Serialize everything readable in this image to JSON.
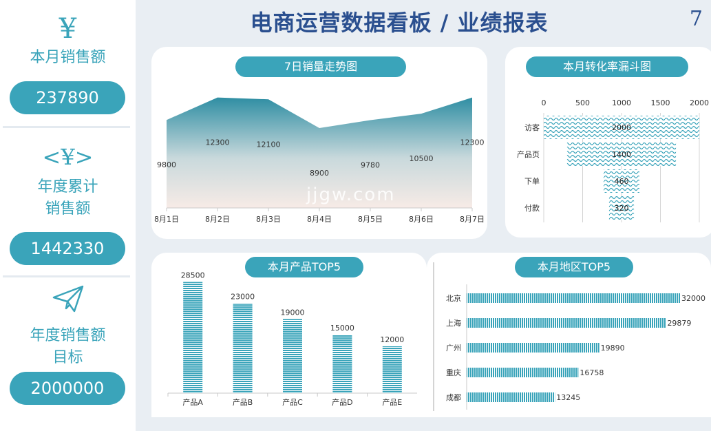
{
  "header": {
    "title": "电商运营数据看板 / 业绩报表",
    "page_number": "7"
  },
  "sidebar": {
    "kpis": [
      {
        "icon_text": "¥",
        "icon": "yen-icon",
        "label": "本月销售额",
        "value": "237890"
      },
      {
        "icon_text": "<¥>",
        "icon": "yen-code-icon",
        "label": "年度累计\n销售额",
        "value": "1442330"
      },
      {
        "icon_text": "",
        "icon": "paper-plane-icon",
        "label": "年度销售额\n目标",
        "value": "2000000"
      }
    ]
  },
  "watermark": "jjgw.com",
  "colors": {
    "accent": "#3aa4ba",
    "title": "#2a4f8f",
    "area_top": "#2f8ea3",
    "area_bottom": "#f7ebe6"
  },
  "chart_data": [
    {
      "type": "area",
      "title": "7日销量走势图",
      "categories": [
        "8月1日",
        "8月2日",
        "8月3日",
        "8月4日",
        "8月5日",
        "8月6日",
        "8月7日"
      ],
      "values": [
        9800,
        12300,
        12100,
        8900,
        9780,
        10500,
        12300
      ],
      "ylim": [
        0,
        13500
      ]
    },
    {
      "type": "bar",
      "orientation": "horizontal-funnel",
      "title": "本月转化率漏斗图",
      "categories": [
        "访客",
        "产品页",
        "下单",
        "付款"
      ],
      "values": [
        2000,
        1400,
        460,
        320
      ],
      "xticks": [
        "0",
        "500",
        "1000",
        "1500",
        "2000"
      ],
      "xlim": [
        0,
        2000
      ]
    },
    {
      "type": "bar",
      "title": "本月产品TOP5",
      "categories": [
        "产品A",
        "产品B",
        "产品C",
        "产品D",
        "产品E"
      ],
      "values": [
        28500,
        23000,
        19000,
        15000,
        12000
      ],
      "ylim": [
        0,
        30000
      ]
    },
    {
      "type": "bar",
      "orientation": "horizontal",
      "title": "本月地区TOP5",
      "categories": [
        "北京",
        "上海",
        "广州",
        "重庆",
        "成都"
      ],
      "values": [
        32000,
        29879,
        19890,
        16758,
        13245
      ],
      "xlim": [
        0,
        32000
      ]
    }
  ]
}
